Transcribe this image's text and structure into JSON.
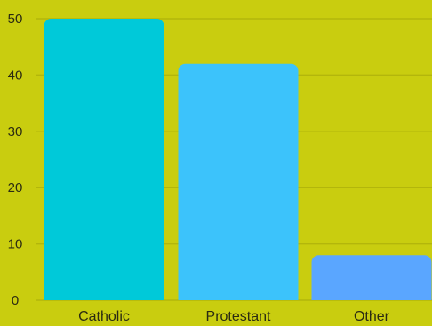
{
  "chart_data": {
    "type": "bar",
    "categories": [
      "Catholic",
      "Protestant",
      "Other"
    ],
    "values": [
      50,
      42,
      8
    ],
    "ylim": [
      0,
      50
    ],
    "yticks": [
      0,
      10,
      20,
      30,
      40,
      50
    ],
    "grid": true,
    "colors": {
      "background": "#c9cd0f",
      "gridline": "#b3b60b",
      "bars": [
        "#00c9d9",
        "#3cc3fb",
        "#5aa6ff"
      ]
    }
  }
}
